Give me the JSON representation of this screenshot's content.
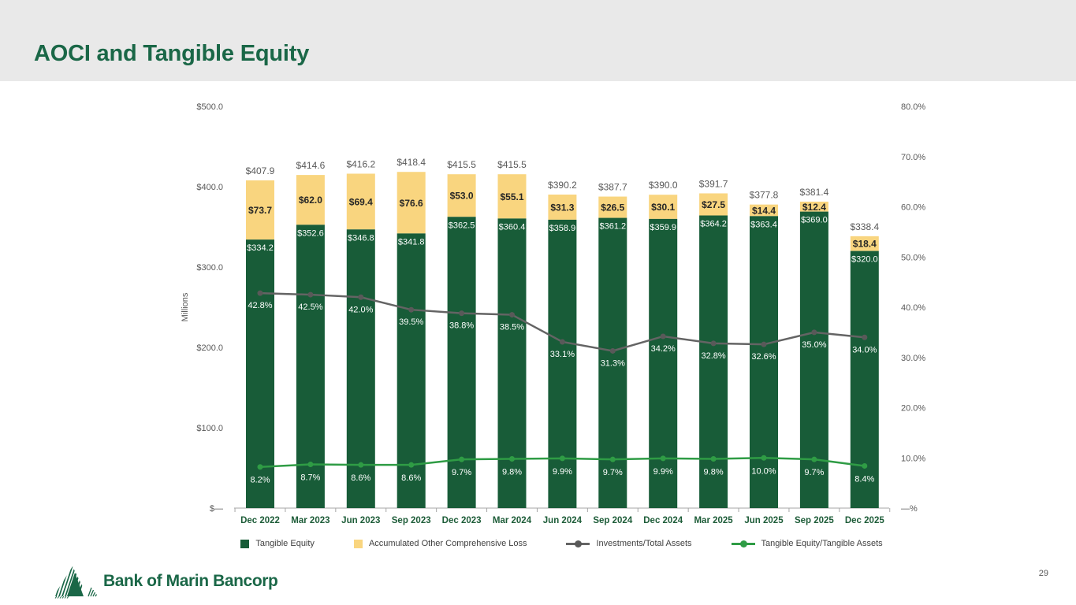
{
  "slide": {
    "title": "AOCI and Tangible Equity",
    "page_number": "29",
    "logo_text": "Bank of Marin Bancorp"
  },
  "colors": {
    "header_background": "#e9e9e9",
    "title_green": "#1a6747",
    "bar_green": "#185c38",
    "bar_yellow": "#f9d57f",
    "gray_line": "#646464",
    "gray_marker": "#595959",
    "green_line": "#2f9c45",
    "axis_text": "#595959",
    "axis_line": "#a6a6a6"
  },
  "chart_data": {
    "type": "bar",
    "subtype": "stacked-bars-with-two-lines",
    "title": "AOCI and Tangible Equity",
    "categories": [
      "Dec 2022",
      "Mar 2023",
      "Jun 2023",
      "Sep 2023",
      "Dec 2023",
      "Mar 2024",
      "Jun 2024",
      "Sep 2024",
      "Dec 2024",
      "Mar 2025",
      "Jun 2025",
      "Sep 2025",
      "Dec 2025"
    ],
    "series": [
      {
        "name": "Tangible Equity",
        "type": "bar",
        "axis": "left",
        "color": "#185c38",
        "values": [
          334.2,
          352.6,
          346.8,
          341.8,
          362.5,
          360.4,
          358.9,
          361.2,
          359.9,
          364.2,
          363.4,
          369.0,
          320.0
        ]
      },
      {
        "name": "Accumulated Other Comprehensive Loss",
        "type": "bar",
        "axis": "left",
        "color": "#f9d57f",
        "values": [
          73.7,
          62.0,
          69.4,
          76.6,
          53.0,
          55.1,
          31.3,
          26.5,
          30.1,
          27.5,
          14.4,
          12.4,
          18.4
        ]
      },
      {
        "name": "Investments/Total Assets",
        "type": "line",
        "axis": "right",
        "color": "#646464",
        "marker_color": "#595959",
        "values": [
          42.8,
          42.5,
          42.0,
          39.5,
          38.8,
          38.5,
          33.1,
          31.3,
          34.2,
          32.8,
          32.6,
          35.0,
          34.0
        ]
      },
      {
        "name": "Tangible Equity/Tangible Assets",
        "type": "line",
        "axis": "right",
        "color": "#2f9c45",
        "marker_color": "#2f9c45",
        "values": [
          8.2,
          8.7,
          8.6,
          8.6,
          9.7,
          9.8,
          9.9,
          9.7,
          9.9,
          9.8,
          10.0,
          9.7,
          8.4
        ]
      }
    ],
    "bar_totals": [
      407.9,
      414.6,
      416.2,
      418.4,
      415.5,
      415.5,
      390.2,
      387.7,
      390.0,
      391.7,
      377.8,
      381.4,
      338.4
    ],
    "left_axis": {
      "label": "Millions",
      "ticks": [
        "$500.0",
        "$400.0",
        "$300.0",
        "$200.0",
        "$100.0",
        "$—"
      ],
      "range": [
        0,
        500
      ]
    },
    "right_axis": {
      "ticks": [
        "80.0%",
        "70.0%",
        "60.0%",
        "50.0%",
        "40.0%",
        "30.0%",
        "20.0%",
        "10.0%",
        "—%"
      ],
      "range": [
        0,
        80
      ]
    },
    "legend_position": "bottom",
    "grid": false
  }
}
